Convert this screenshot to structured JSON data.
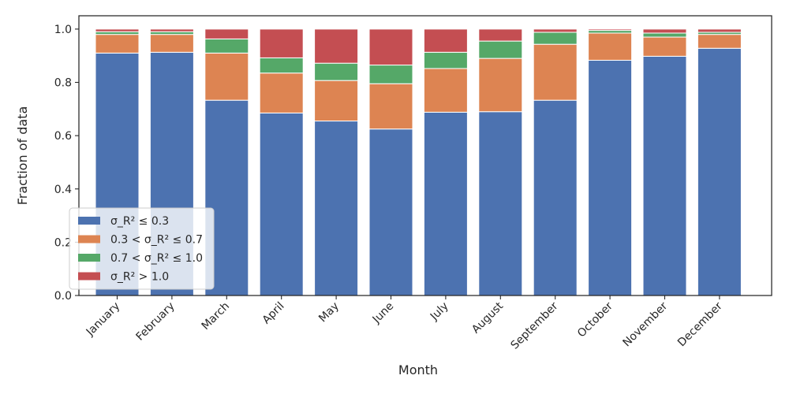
{
  "chart_data": {
    "type": "bar",
    "stacked": true,
    "title": "",
    "xlabel": "Month",
    "ylabel": "Fraction of data",
    "ylim": [
      0,
      1.05
    ],
    "yticks": [
      "0.0",
      "0.2",
      "0.4",
      "0.6",
      "0.8",
      "1.0"
    ],
    "grid": false,
    "legend_position": "lower-left",
    "categories": [
      "January",
      "February",
      "March",
      "April",
      "May",
      "June",
      "July",
      "August",
      "September",
      "October",
      "November",
      "December"
    ],
    "series": [
      {
        "name": "σ_R² ≤ 0.3",
        "color": "#4c72b0",
        "values": [
          0.91,
          0.913,
          0.733,
          0.685,
          0.655,
          0.625,
          0.688,
          0.69,
          0.733,
          0.883,
          0.898,
          0.928
        ]
      },
      {
        "name": "0.3 < σ_R² ≤ 0.7",
        "color": "#dd8452",
        "values": [
          0.07,
          0.067,
          0.177,
          0.15,
          0.152,
          0.17,
          0.164,
          0.2,
          0.21,
          0.102,
          0.072,
          0.052
        ]
      },
      {
        "name": "0.7 < σ_R² ≤ 1.0",
        "color": "#55a868",
        "values": [
          0.01,
          0.01,
          0.053,
          0.057,
          0.065,
          0.07,
          0.061,
          0.065,
          0.045,
          0.01,
          0.015,
          0.008
        ]
      },
      {
        "name": "σ_R² > 1.0",
        "color": "#c44e52",
        "values": [
          0.01,
          0.01,
          0.037,
          0.108,
          0.128,
          0.135,
          0.087,
          0.045,
          0.012,
          0.005,
          0.015,
          0.012
        ]
      }
    ]
  }
}
